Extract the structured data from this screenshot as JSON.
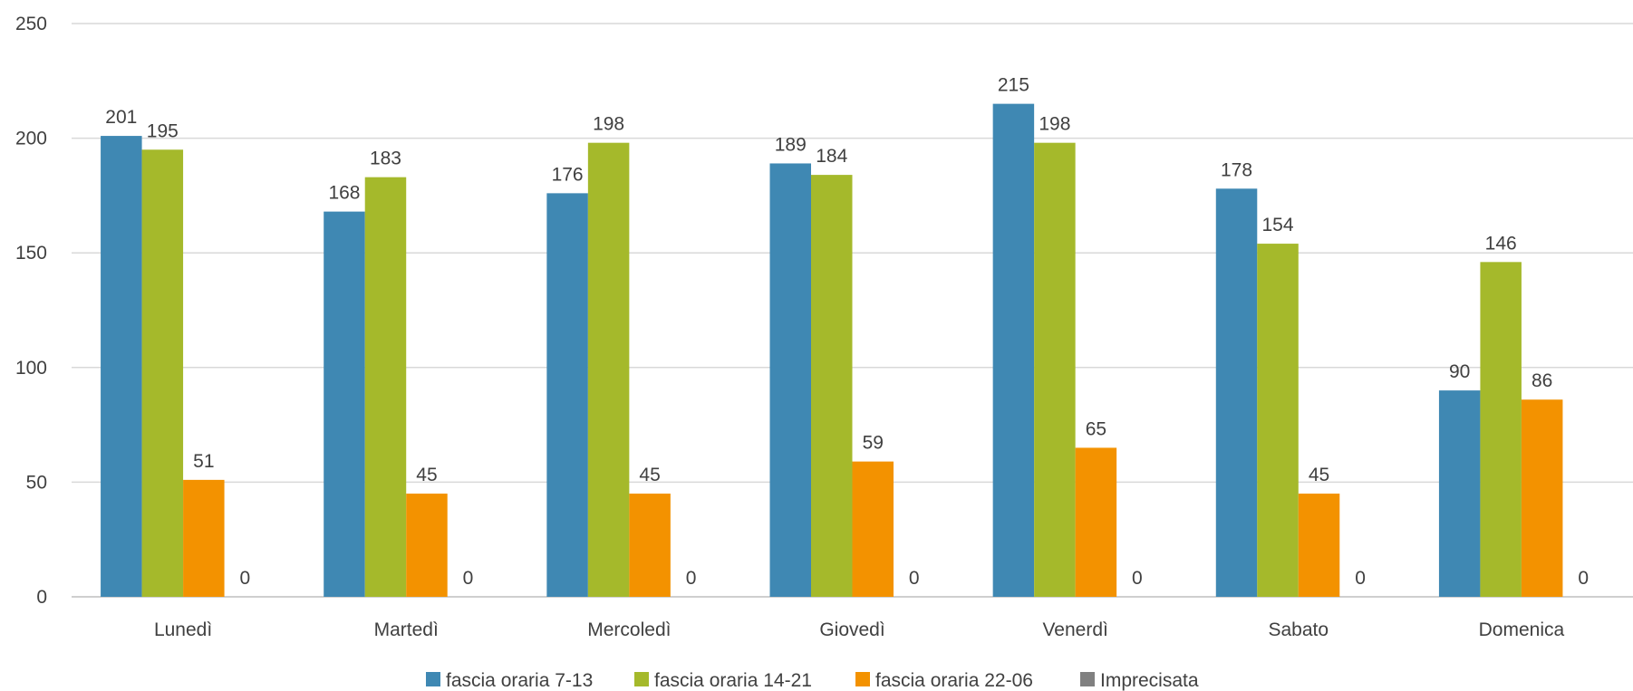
{
  "chart_data": {
    "type": "bar",
    "categories": [
      "Lunedì",
      "Martedì",
      "Mercoledì",
      "Giovedì",
      "Venerdì",
      "Sabato",
      "Domenica"
    ],
    "series": [
      {
        "name": "fascia oraria 7-13",
        "color": "#3f88b3",
        "values": [
          201,
          168,
          176,
          189,
          215,
          178,
          90
        ]
      },
      {
        "name": "fascia oraria 14-21",
        "color": "#a5b92b",
        "values": [
          195,
          183,
          198,
          184,
          198,
          154,
          146
        ]
      },
      {
        "name": "fascia oraria 22-06",
        "color": "#f39200",
        "values": [
          51,
          45,
          45,
          59,
          65,
          45,
          86
        ]
      },
      {
        "name": "Imprecisata",
        "color": "#808080",
        "values": [
          0,
          0,
          0,
          0,
          0,
          0,
          0
        ]
      }
    ],
    "yticks": [
      0,
      50,
      100,
      150,
      200,
      250
    ],
    "ylim": [
      0,
      250
    ],
    "grid": true,
    "legend": "bottom",
    "data_labels": true
  }
}
